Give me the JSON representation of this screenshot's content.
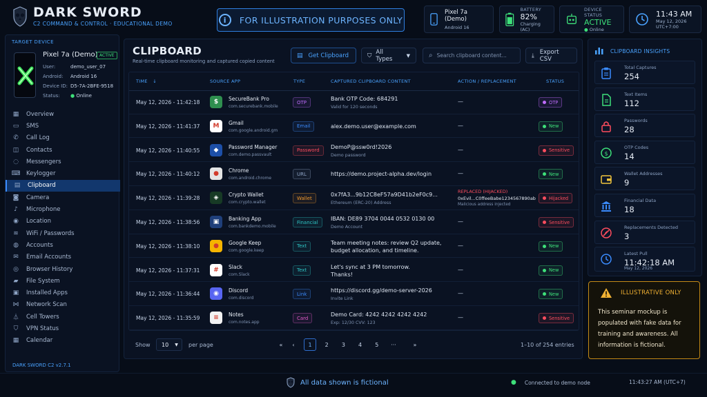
{
  "header": {
    "brand": "DARK SWORD",
    "tagline": "C2 COMMAND & CONTROL · EDUCATIONAL DEMO",
    "banner": "FOR ILLUSTRATION PURPOSES ONLY",
    "device": {
      "name": "Pixel 7a (Demo)",
      "os": "Android 16"
    },
    "battery": {
      "label": "BATTERY",
      "value": "82%",
      "status": "Charging (AC)",
      "level_percent": 82
    },
    "device_status": {
      "label": "DEVICE STATUS",
      "value": "ACTIVE",
      "sub": "Online"
    },
    "clock": {
      "time": "11:43 AM",
      "date": "May 12, 2026",
      "tz": "UTC+7:00"
    }
  },
  "sidebar": {
    "title": "TARGET DEVICE",
    "device": {
      "name": "Pixel 7a (Demo)",
      "badge": "ACTIVE",
      "fields": [
        {
          "label": "User:",
          "value": "demo_user_07"
        },
        {
          "label": "Android:",
          "value": "Android 16"
        },
        {
          "label": "Device ID:",
          "value": "D5-7A-2BFE-9518"
        },
        {
          "label": "Status:",
          "value": "Online"
        }
      ]
    },
    "items": [
      {
        "label": "Overview",
        "icon": "grid-icon"
      },
      {
        "label": "SMS",
        "icon": "message-icon"
      },
      {
        "label": "Call Log",
        "icon": "phone-icon"
      },
      {
        "label": "Contacts",
        "icon": "contacts-icon"
      },
      {
        "label": "Messengers",
        "icon": "chat-icon"
      },
      {
        "label": "Keylogger",
        "icon": "keyboard-icon"
      },
      {
        "label": "Clipboard",
        "icon": "clipboard-icon"
      },
      {
        "label": "Camera",
        "icon": "camera-icon"
      },
      {
        "label": "Microphone",
        "icon": "microphone-icon"
      },
      {
        "label": "Location",
        "icon": "location-icon"
      },
      {
        "label": "WiFi / Passwords",
        "icon": "wifi-icon"
      },
      {
        "label": "Accounts",
        "icon": "user-icon"
      },
      {
        "label": "Email Accounts",
        "icon": "mail-icon"
      },
      {
        "label": "Browser History",
        "icon": "globe-icon"
      },
      {
        "label": "File System",
        "icon": "folder-icon"
      },
      {
        "label": "Installed Apps",
        "icon": "apps-icon"
      },
      {
        "label": "Network Scan",
        "icon": "network-icon"
      },
      {
        "label": "Cell Towers",
        "icon": "tower-icon"
      },
      {
        "label": "VPN Status",
        "icon": "shield-icon"
      },
      {
        "label": "Calendar",
        "icon": "calendar-icon"
      }
    ],
    "active_index": 6,
    "version": "DARK SWORD C2 v2.7.1"
  },
  "main": {
    "title": "CLIPBOARD",
    "subtitle": "Real-time clipboard monitoring and captured copied content",
    "get_button": "Get Clipboard",
    "filter": "All Types",
    "search_placeholder": "Search clipboard content...",
    "export": "Export CSV",
    "columns": [
      "TIME",
      "SOURCE APP",
      "TYPE",
      "CAPTURED CLIPBOARD CONTENT",
      "ACTION / REPLACEMENT",
      "STATUS"
    ],
    "rows": [
      {
        "time": "May 12, 2026 - 11:42:18",
        "app": "SecureBank Pro",
        "pkg": "com.securebank.mobile",
        "icon": "bank-app-icon",
        "icon_color": "#2f8f4f",
        "icon_glyph": "$",
        "type": "OTP",
        "type_color": "#c06cff",
        "content": "Bank OTP Code: 684291",
        "sub": "Valid for 120 seconds",
        "action": "—",
        "status": "OTP",
        "status_color": "#c06cff"
      },
      {
        "time": "May 12, 2026 - 11:41:37",
        "app": "Gmail",
        "pkg": "com.google.android.gm",
        "icon": "gmail-icon",
        "icon_color": "#ffffff",
        "icon_glyph": "M",
        "type": "Email",
        "type_color": "#3b8cff",
        "content": "alex.demo.user@example.com",
        "sub": "",
        "action": "—",
        "status": "New",
        "status_color": "#3ee07a"
      },
      {
        "time": "May 12, 2026 - 11:40:55",
        "app": "Password Manager",
        "pkg": "com.demo.passvault",
        "icon": "password-manager-icon",
        "icon_color": "#1d4fa8",
        "icon_glyph": "◆",
        "type": "Password",
        "type_color": "#ff4d5e",
        "content": "DemoP@ssw0rd!2026",
        "sub": "Demo password",
        "action": "—",
        "status": "Sensitive",
        "status_color": "#ff4d5e"
      },
      {
        "time": "May 12, 2026 - 11:40:12",
        "app": "Chrome",
        "pkg": "com.android.chrome",
        "icon": "chrome-icon",
        "icon_color": "#e5e5e5",
        "icon_glyph": "●",
        "type": "URL",
        "type_color": "#8da3c4",
        "content": "https://demo.project-alpha.dev/login",
        "sub": "",
        "action": "—",
        "status": "New",
        "status_color": "#3ee07a"
      },
      {
        "time": "May 12, 2026 - 11:39:28",
        "app": "Crypto Wallet",
        "pkg": "com.crypto.wallet",
        "icon": "crypto-wallet-icon",
        "icon_color": "#173a25",
        "icon_glyph": "◈",
        "type": "Wallet",
        "type_color": "#f29a2e",
        "content": "0x7fA3...9b12C8eF57a9D41b2eF0c9...",
        "sub": "Ethereum (ERC-20) Address",
        "action": "REPLACED (HIJACKED)",
        "action_main": "0xEvil...C0ffeeBabe1234567890ab",
        "action_sub": "Malicious address injected",
        "status": "Hijacked",
        "status_color": "#ff4d5e"
      },
      {
        "time": "May 12, 2026 - 11:38:56",
        "app": "Banking App",
        "pkg": "com.bankdemo.mobile",
        "icon": "banking-app-icon",
        "icon_color": "#1f3f7a",
        "icon_glyph": "▣",
        "type": "Financial",
        "type_color": "#2ec5c5",
        "content": "IBAN: DE89 3704 0044 0532 0130 00",
        "sub": "Demo Account",
        "action": "—",
        "status": "Sensitive",
        "status_color": "#ff4d5e"
      },
      {
        "time": "May 12, 2026 - 11:38:10",
        "app": "Google Keep",
        "pkg": "com.google.keep",
        "icon": "keep-icon",
        "icon_color": "#f5b400",
        "icon_glyph": "●",
        "type": "Text",
        "type_color": "#2ec5c5",
        "content": "Team meeting notes: review Q2 update,",
        "content2": "budget allocation, and timeline.",
        "sub": "",
        "action": "—",
        "status": "New",
        "status_color": "#3ee07a"
      },
      {
        "time": "May 12, 2026 - 11:37:31",
        "app": "Slack",
        "pkg": "com.Slack",
        "icon": "slack-icon",
        "icon_color": "#ffffff",
        "icon_glyph": "#",
        "type": "Text",
        "type_color": "#2ec5c5",
        "content": "Let's sync at 3 PM tomorrow.",
        "content2": "Thanks!",
        "sub": "",
        "action": "—",
        "status": "New",
        "status_color": "#3ee07a"
      },
      {
        "time": "May 12, 2026 - 11:36:44",
        "app": "Discord",
        "pkg": "com.discord",
        "icon": "discord-icon",
        "icon_color": "#5865f2",
        "icon_glyph": "◉",
        "type": "Link",
        "type_color": "#3b8cff",
        "content": "https://discord.gg/demo-server-2026",
        "sub": "Invite Link",
        "action": "—",
        "status": "New",
        "status_color": "#3ee07a"
      },
      {
        "time": "May 12, 2026 - 11:35:59",
        "app": "Notes",
        "pkg": "com.notes.app",
        "icon": "notes-icon",
        "icon_color": "#f2f2f2",
        "icon_glyph": "≡",
        "type": "Card",
        "type_color": "#e05cc8",
        "content": "Demo Card: 4242 4242 4242 4242",
        "sub": "Exp: 12/30    CVV: 123",
        "action": "—",
        "status": "Sensitive",
        "status_color": "#ff4d5e"
      }
    ],
    "pager": {
      "show_label": "Show",
      "per_page": "10",
      "per_page_label": "per page",
      "pages": [
        "1",
        "2",
        "3",
        "4",
        "5",
        "···"
      ],
      "current": "1",
      "summary": "1–10 of 254 entries"
    }
  },
  "insights": {
    "title": "CLIPBOARD INSIGHTS",
    "stats": [
      {
        "label": "Total Captures",
        "value": "254",
        "icon": "clipboard-icon",
        "color": "#3b8cff"
      },
      {
        "label": "Text Items",
        "value": "112",
        "icon": "document-icon",
        "color": "#3ee07a"
      },
      {
        "label": "Passwords",
        "value": "28",
        "icon": "lock-icon",
        "color": "#ff4d5e"
      },
      {
        "label": "OTP Codes",
        "value": "14",
        "icon": "otp-icon",
        "color": "#3ee07a"
      },
      {
        "label": "Wallet Addresses",
        "value": "9",
        "icon": "wallet-icon",
        "color": "#f2c53d"
      },
      {
        "label": "Financial Data",
        "value": "18",
        "icon": "bank-icon",
        "color": "#3b8cff"
      },
      {
        "label": "Replacements Detected",
        "value": "3",
        "icon": "replace-icon",
        "color": "#ff4d5e"
      },
      {
        "label": "Latest Pull",
        "value": "11:42:18 AM",
        "sub": "May 12, 2026",
        "icon": "clock-icon",
        "color": "#3b8cff"
      }
    ]
  },
  "warning": {
    "title": "ILLUSTRATIVE ONLY",
    "body": "This seminar mockup is populated with fake data for training and awareness. All information is fictional."
  },
  "footer": {
    "message": "All data shown is fictional",
    "connection": "Connected to demo node",
    "time": "11:43:27 AM (UTC+7)"
  }
}
